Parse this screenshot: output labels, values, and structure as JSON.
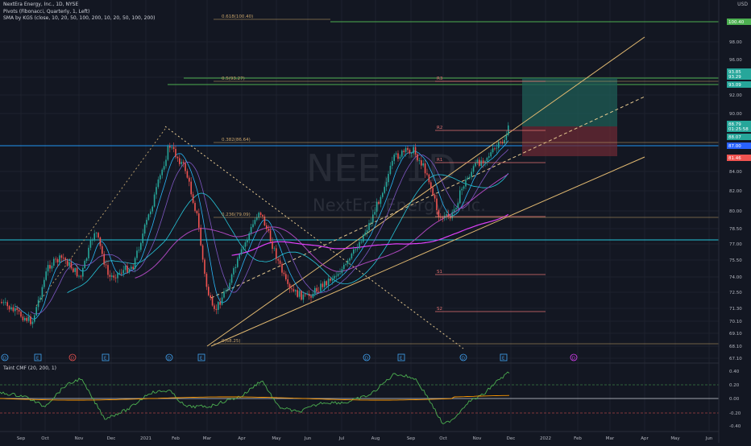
{
  "header": {
    "title": "NextEra Energy, Inc., 1D, NYSE",
    "pivots": "Pivots (Fibonacci, Quarterly, 1, Left)",
    "sma": "SMA by KGS (close, 10, 20, 50, 100, 200, 10, 20, 50, 100, 200)",
    "currency": "USD"
  },
  "watermark": {
    "symbol": "NEE, 1D",
    "name": "NextEra Energy, Inc."
  },
  "price_axis": {
    "ticks": [
      "98.00",
      "96.00",
      "94.00",
      "92.00",
      "90.00",
      "84.00",
      "82.00",
      "80.00",
      "78.50",
      "77.00",
      "75.50",
      "74.00",
      "72.50",
      "71.30",
      "70.10",
      "69.10",
      "68.10",
      "67.10"
    ],
    "tags": [
      {
        "label": "100.40",
        "color": "#4caf50"
      },
      {
        "label": "93.85",
        "color": "#26a69a"
      },
      {
        "label": "93.29",
        "color": "#26a69a"
      },
      {
        "label": "93.09",
        "color": "#26a69a"
      },
      {
        "label": "88.79",
        "color": "#26a69a"
      },
      {
        "label": "01:25:58",
        "color": "#26a69a"
      },
      {
        "label": "88.07",
        "color": "#26a69a"
      },
      {
        "label": "87.00",
        "color": "#2962ff"
      },
      {
        "label": "81.46",
        "color": "#ef5350"
      }
    ]
  },
  "time_axis": {
    "labels": [
      "Sep",
      "Oct",
      "Nov",
      "Dec",
      "2021",
      "Feb",
      "Mar",
      "Apr",
      "May",
      "Jun",
      "Jul",
      "Aug",
      "Sep",
      "Oct",
      "Nov",
      "Dec",
      "2022",
      "Feb",
      "Mar",
      "Apr",
      "May",
      "Jun"
    ]
  },
  "fib_labels": [
    "0.618(100.40)",
    "0.5(93.27)",
    "0.382(86.64)",
    "0.236(79.09)",
    "0(68.25)"
  ],
  "pivot_labels": [
    "R3",
    "R2",
    "R1",
    "P",
    "S1",
    "S2"
  ],
  "event_markers": [
    "D",
    "E",
    "D",
    "E",
    "D",
    "E",
    "D",
    "E",
    "D",
    "E",
    "D",
    "E"
  ],
  "indicator": {
    "title": "Taint CMF (20, 200, 1)",
    "ticks": [
      "0.40",
      "0.20",
      "0.00",
      "-0.20",
      "-0.40"
    ]
  },
  "colors": {
    "background": "#131722",
    "up": "#26a69a",
    "down": "#ef5350",
    "fib": "#c9a46a",
    "channel": "#e0b870",
    "support": "#2196f3",
    "pivot": "#e57373",
    "sma_magenta": "#e040fb",
    "sma_blue": "#42a5f5",
    "cmf": "#4caf50",
    "cmf_signal": "#ff9800"
  }
}
